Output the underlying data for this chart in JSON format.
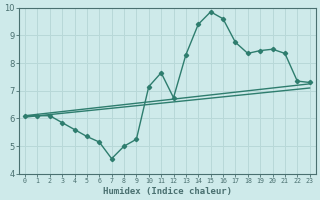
{
  "xlabel": "Humidex (Indice chaleur)",
  "background_color": "#ceeaea",
  "grid_color": "#b8d8d8",
  "line_color": "#2e7d6e",
  "spine_color": "#4a7070",
  "xlim": [
    -0.5,
    23.5
  ],
  "ylim": [
    4,
    10
  ],
  "xticks": [
    0,
    1,
    2,
    3,
    4,
    5,
    6,
    7,
    8,
    9,
    10,
    11,
    12,
    13,
    14,
    15,
    16,
    17,
    18,
    19,
    20,
    21,
    22,
    23
  ],
  "yticks": [
    4,
    5,
    6,
    7,
    8,
    9,
    10
  ],
  "curve1_x": [
    0,
    1,
    2,
    3,
    4,
    5,
    6,
    7,
    8,
    9,
    10,
    11,
    12,
    13,
    14,
    15,
    16,
    17,
    18,
    19,
    20,
    21,
    22,
    23
  ],
  "curve1_y": [
    6.1,
    6.1,
    6.1,
    5.85,
    5.6,
    5.35,
    5.15,
    4.55,
    5.0,
    5.25,
    7.15,
    7.65,
    6.75,
    8.3,
    9.4,
    9.85,
    9.6,
    8.75,
    8.35,
    8.45,
    8.5,
    8.35,
    7.35,
    7.3
  ],
  "line2_x": [
    0,
    23
  ],
  "line2_y": [
    6.1,
    7.25
  ],
  "line3_x": [
    0,
    23
  ],
  "line3_y": [
    6.05,
    7.1
  ]
}
